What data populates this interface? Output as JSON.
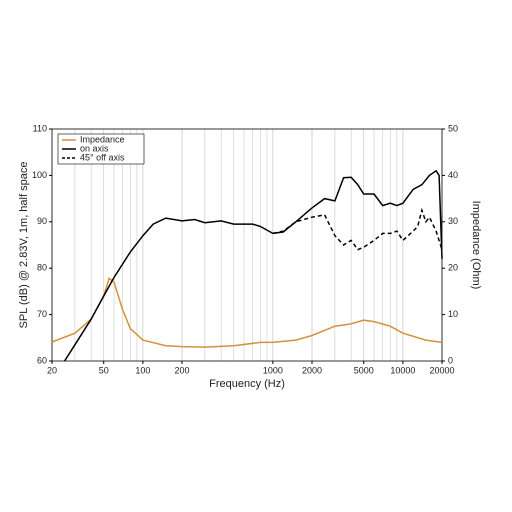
{
  "chart_data": {
    "type": "line",
    "xlabel": "Frequency (Hz)",
    "ylabel": "SPL (dB) @ 2.83V, 1m, half space",
    "y2label": "Impedance (Ohm)",
    "xscale": "log",
    "xlim": [
      20,
      20000
    ],
    "xticks": [
      20,
      50,
      100,
      200,
      1000,
      2000,
      5000,
      10000,
      20000
    ],
    "ylim": [
      60,
      110
    ],
    "yticks": [
      60,
      70,
      80,
      90,
      100,
      110
    ],
    "y2lim": [
      0,
      50
    ],
    "y2ticks": [
      0,
      10,
      20,
      30,
      40,
      50
    ],
    "grid": true,
    "legend": "upper left",
    "series": [
      {
        "name": "Impedance",
        "color": "#d4923a",
        "axis": "y2",
        "dash": false,
        "x": [
          20,
          30,
          40,
          50,
          55,
          60,
          70,
          80,
          100,
          150,
          200,
          300,
          500,
          800,
          1000,
          1500,
          2000,
          3000,
          4000,
          5000,
          6000,
          8000,
          10000,
          15000,
          20000
        ],
        "values": [
          4.1,
          6,
          9,
          14,
          17.8,
          17,
          11,
          7,
          4.5,
          3.3,
          3.1,
          3,
          3.3,
          4,
          4,
          4.5,
          5.5,
          7.5,
          8,
          8.8,
          8.5,
          7.5,
          6,
          4.5,
          4
        ]
      },
      {
        "name": "on axis",
        "color": "#000000",
        "dash": false,
        "x": [
          25,
          30,
          40,
          50,
          60,
          80,
          100,
          120,
          150,
          200,
          250,
          300,
          400,
          500,
          700,
          800,
          1000,
          1200,
          1500,
          2000,
          2500,
          3000,
          3500,
          4000,
          4500,
          5000,
          6000,
          7000,
          8000,
          9000,
          10000,
          12000,
          14000,
          16000,
          18000,
          19000,
          20000
        ],
        "values": [
          60,
          63.5,
          69,
          74,
          78,
          83.5,
          87,
          89.5,
          90.8,
          90.2,
          90.5,
          89.8,
          90.2,
          89.5,
          89.5,
          89,
          87.5,
          87.8,
          90,
          93,
          95,
          94.5,
          99.5,
          99.6,
          98,
          96,
          96,
          93.5,
          94,
          93.5,
          94,
          97,
          98,
          100,
          101,
          100,
          82
        ]
      },
      {
        "name": "45° off axis",
        "color": "#000000",
        "dash": true,
        "x": [
          1000,
          1200,
          1500,
          2000,
          2500,
          3000,
          3500,
          4000,
          4500,
          5000,
          6000,
          7000,
          8000,
          9000,
          10000,
          12000,
          13000,
          14000,
          15000,
          16000,
          18000,
          20000
        ],
        "values": [
          87.5,
          88,
          90,
          91,
          91.5,
          87,
          85,
          86,
          84,
          84.5,
          86,
          87.5,
          87.5,
          88,
          86,
          88,
          89,
          92.5,
          90,
          91,
          88,
          84
        ]
      }
    ]
  }
}
